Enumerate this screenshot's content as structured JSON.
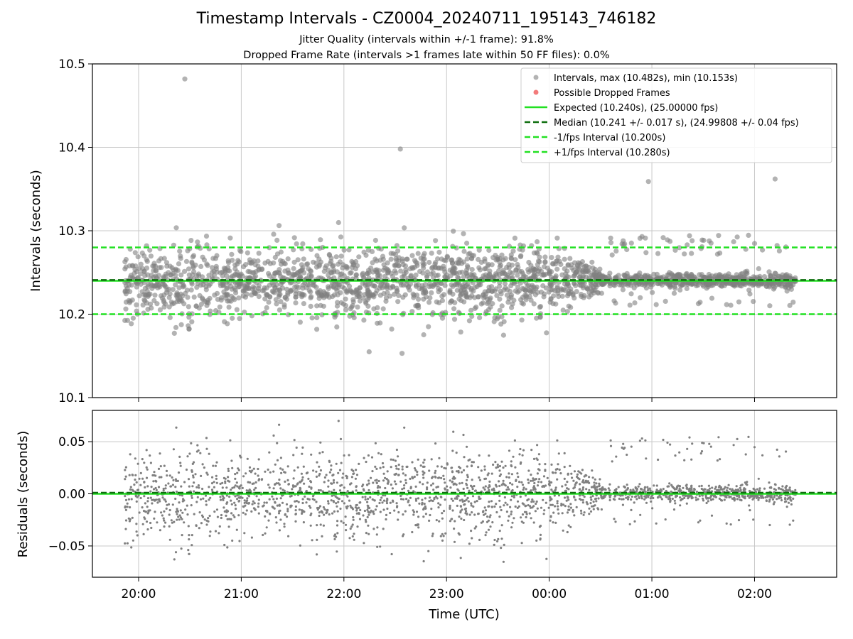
{
  "title": "Timestamp Intervals - CZ0004_20240711_195143_746182",
  "subtitle_jitter": "Jitter Quality (intervals within +/-1 frame): 91.8%",
  "subtitle_dropped": "Dropped Frame Rate (intervals >1 frames late within 50 FF files): 0.0%",
  "colors": {
    "points": "#808080",
    "dropped": "#f26d6d",
    "expected": "#22e022",
    "median": "#0e6e0e",
    "interval": "#22e022",
    "grid": "#c8c8c8"
  },
  "chart_data": [
    {
      "type": "scatter",
      "ylabel": "Intervals (seconds)",
      "xlim": [
        "19:33",
        "02:48"
      ],
      "ylim": [
        10.1,
        10.5
      ],
      "yticks": [
        "10.1",
        "10.2",
        "10.3",
        "10.4",
        "10.5"
      ],
      "grid": true,
      "legend_position": "top-right",
      "series": [
        {
          "name": "Intervals, max (10.482s), min (10.153s)",
          "kind": "scatter",
          "x_range": [
            "19:52",
            "02:24"
          ],
          "max": 10.482,
          "min": 10.153,
          "note_values": "approx. 2300 intervals"
        },
        {
          "name": "Possible Dropped Frames",
          "kind": "scatter",
          "values": []
        }
      ],
      "reference_lines": [
        {
          "name": "Expected (10.240s), (25.00000 fps)",
          "y": 10.24,
          "style": "solid"
        },
        {
          "name": "Median (10.241 +/- 0.017 s), (24.99808 +/- 0.04 fps)",
          "y": 10.241,
          "style": "dashed"
        },
        {
          "name": "-1/fps Interval (10.200s)",
          "y": 10.2,
          "style": "dashed"
        },
        {
          "name": "+1/fps Interval (10.280s)",
          "y": 10.28,
          "style": "dashed"
        }
      ],
      "notable_outliers": [
        {
          "x": "20:27",
          "y": 10.482
        },
        {
          "x": "22:33",
          "y": 10.398
        },
        {
          "x": "22:34",
          "y": 10.153
        },
        {
          "x": "02:12",
          "y": 10.362
        },
        {
          "x": "00:58",
          "y": 10.359
        }
      ]
    },
    {
      "type": "scatter",
      "xlabel": "Time (UTC)",
      "ylabel": "Residuals (seconds)",
      "xticks": [
        "20:00",
        "21:00",
        "22:00",
        "23:00",
        "00:00",
        "01:00",
        "02:00"
      ],
      "yticks": [
        "0.05",
        "0.00",
        "−0.05"
      ],
      "ylim": [
        -0.08,
        0.08
      ],
      "grid": true,
      "reference_lines": [
        {
          "y": 0.0,
          "style": "solid",
          "color": "expected"
        },
        {
          "y": 0.001,
          "style": "dashed",
          "color": "median"
        }
      ]
    }
  ]
}
